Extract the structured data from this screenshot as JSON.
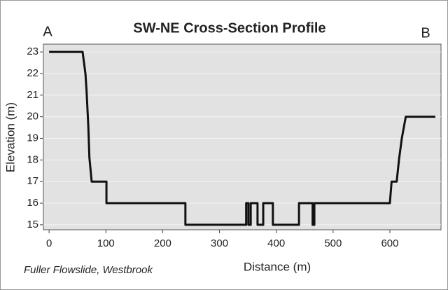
{
  "chart_data": {
    "type": "line",
    "title": "SW-NE Cross-Section Profile",
    "annotations": [
      "A",
      "B"
    ],
    "footnote": "Fuller Flowslide, Westbrook",
    "xlabel": "Distance (m)",
    "ylabel": "Elevation (m)",
    "series": [
      {
        "name": "Elevation",
        "color": "#111111",
        "x": [
          0,
          59,
          64,
          66,
          69,
          71,
          75,
          101,
          101,
          240,
          240,
          347,
          347,
          351,
          351,
          355,
          355,
          367,
          367,
          377,
          377,
          394,
          394,
          440,
          440,
          464,
          464,
          467,
          467,
          473,
          473,
          600,
          603,
          612,
          616,
          621,
          628,
          680
        ],
        "values": [
          23,
          23,
          22,
          21.2,
          19.6,
          18.1,
          17,
          17,
          16,
          16,
          15,
          15,
          16,
          16,
          15,
          15,
          16,
          16,
          15,
          15,
          16,
          16,
          15,
          15,
          16,
          16,
          15,
          15,
          16,
          16,
          16,
          16,
          17,
          17,
          18,
          19,
          20,
          20
        ]
      }
    ],
    "xlim": [
      -10,
      690
    ],
    "xticks": [
      0,
      100,
      200,
      300,
      400,
      500,
      600
    ],
    "ylim": [
      14.77,
      23.36
    ],
    "yticks": [
      15,
      16,
      17,
      18,
      19,
      20,
      21,
      22,
      23
    ],
    "grid": true
  }
}
